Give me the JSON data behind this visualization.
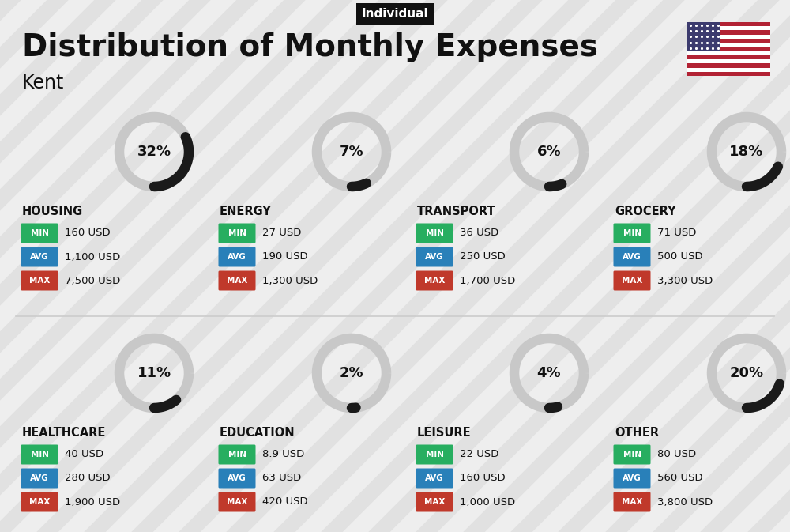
{
  "title": "Distribution of Monthly Expenses",
  "subtitle": "Kent",
  "tag": "Individual",
  "bg_color": "#eeeeee",
  "categories": [
    {
      "name": "HOUSING",
      "pct": 32,
      "min_val": "160 USD",
      "avg_val": "1,100 USD",
      "max_val": "7,500 USD",
      "row": 0,
      "col": 0
    },
    {
      "name": "ENERGY",
      "pct": 7,
      "min_val": "27 USD",
      "avg_val": "190 USD",
      "max_val": "1,300 USD",
      "row": 0,
      "col": 1
    },
    {
      "name": "TRANSPORT",
      "pct": 6,
      "min_val": "36 USD",
      "avg_val": "250 USD",
      "max_val": "1,700 USD",
      "row": 0,
      "col": 2
    },
    {
      "name": "GROCERY",
      "pct": 18,
      "min_val": "71 USD",
      "avg_val": "500 USD",
      "max_val": "3,300 USD",
      "row": 0,
      "col": 3
    },
    {
      "name": "HEALTHCARE",
      "pct": 11,
      "min_val": "40 USD",
      "avg_val": "280 USD",
      "max_val": "1,900 USD",
      "row": 1,
      "col": 0
    },
    {
      "name": "EDUCATION",
      "pct": 2,
      "min_val": "8.9 USD",
      "avg_val": "63 USD",
      "max_val": "420 USD",
      "row": 1,
      "col": 1
    },
    {
      "name": "LEISURE",
      "pct": 4,
      "min_val": "22 USD",
      "avg_val": "160 USD",
      "max_val": "1,000 USD",
      "row": 1,
      "col": 2
    },
    {
      "name": "OTHER",
      "pct": 20,
      "min_val": "80 USD",
      "avg_val": "560 USD",
      "max_val": "3,800 USD",
      "row": 1,
      "col": 3
    }
  ],
  "min_color": "#27ae60",
  "avg_color": "#2980b9",
  "max_color": "#c0392b",
  "ring_dark": "#1a1a1a",
  "ring_light": "#c8c8c8",
  "text_dark": "#111111",
  "stripe_color": "#d5d5d5",
  "flag_red": "#B22234",
  "flag_blue": "#3C3B6E",
  "divider_color": "#cccccc"
}
